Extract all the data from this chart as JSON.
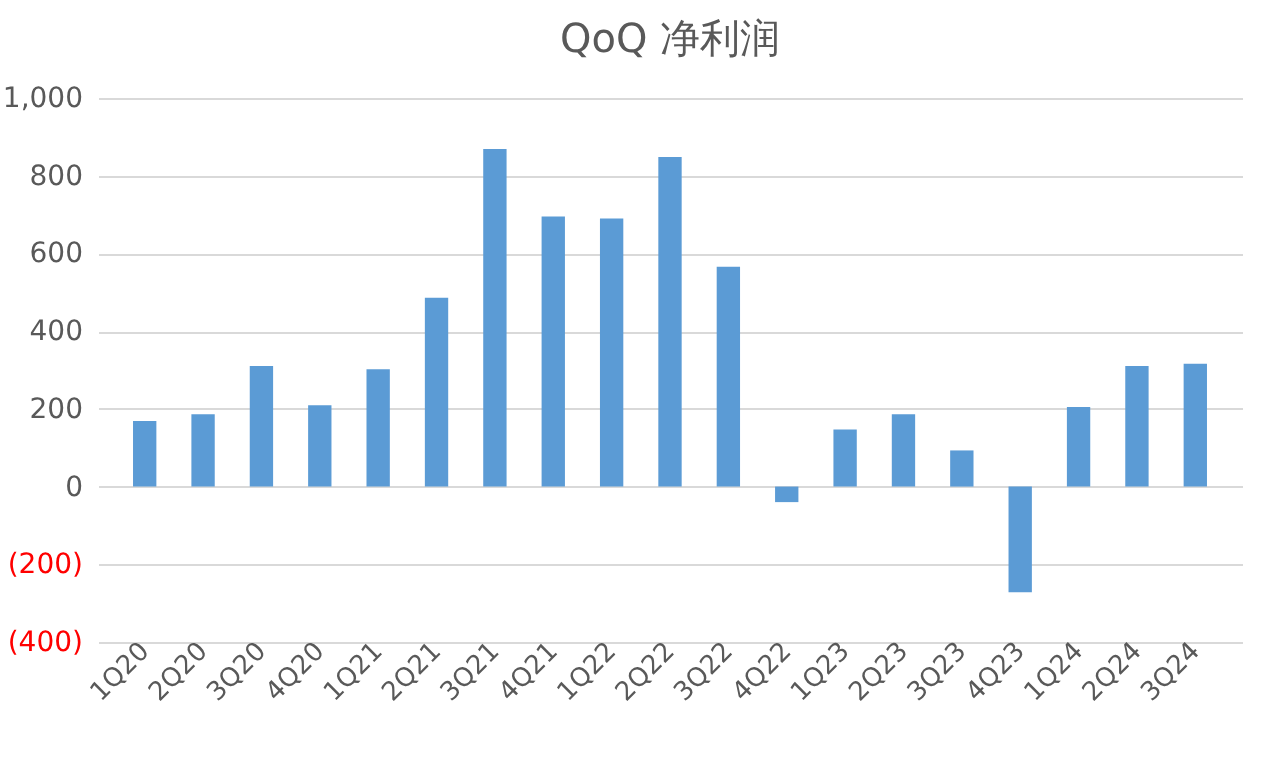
{
  "chart_data": {
    "type": "bar",
    "title": "QoQ 净利润",
    "categories": [
      "1Q20",
      "2Q20",
      "3Q20",
      "4Q20",
      "1Q21",
      "2Q21",
      "3Q21",
      "4Q21",
      "1Q22",
      "2Q22",
      "3Q22",
      "4Q22",
      "1Q23",
      "2Q23",
      "3Q23",
      "4Q23",
      "1Q24",
      "2Q24",
      "3Q24"
    ],
    "values": [
      169,
      186,
      310,
      209,
      302,
      486,
      869,
      695,
      690,
      848,
      566,
      -40,
      147,
      186,
      93,
      -272,
      205,
      310,
      316
    ],
    "color": "#5b9bd5",
    "ylim": [
      -400,
      1000
    ],
    "yticks": [
      {
        "value": -400,
        "label": "(400)"
      },
      {
        "value": -200,
        "label": "(200)"
      },
      0,
      200,
      400,
      600,
      800,
      {
        "value": 1000,
        "label": "1,000"
      }
    ],
    "grid": "y"
  }
}
